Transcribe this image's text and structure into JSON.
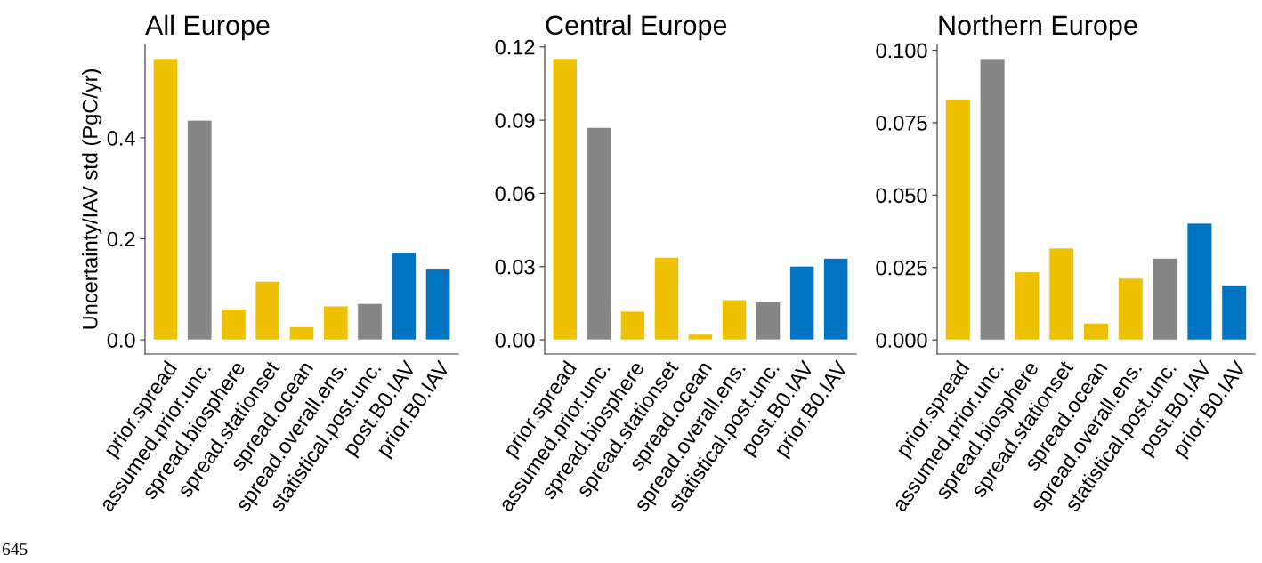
{
  "chart_data": [
    {
      "type": "bar",
      "title": "All Europe",
      "ylabel": "Uncertainty/IAV std (PgC/yr)",
      "categories": [
        "prior.spread",
        "assumed.prior.unc.",
        "spread.biosphere",
        "spread.stationset",
        "spread.ocean",
        "spread.overall.ens.",
        "statistical.post.unc.",
        "post.B0.IAV",
        "prior.B0.IAV"
      ],
      "values": [
        0.557,
        0.435,
        0.061,
        0.116,
        0.026,
        0.067,
        0.072,
        0.173,
        0.14
      ],
      "colors": [
        "#efc000",
        "#868686",
        "#efc000",
        "#efc000",
        "#efc000",
        "#efc000",
        "#868686",
        "#0073c2",
        "#0073c2"
      ],
      "ylim": [
        -0.028,
        0.585
      ],
      "yticks": [
        {
          "value": 0,
          "label": "0.0"
        },
        0.2,
        0.4
      ],
      "grid": false,
      "legend": false,
      "annotations": [
        "645"
      ]
    },
    {
      "type": "bar",
      "title": "Central Europe",
      "categories": [
        "prior.spread",
        "assumed.prior.unc.",
        "spread.biosphere",
        "spread.stationset",
        "spread.ocean",
        "spread.overall.ens.",
        "statistical.post.unc.",
        "post.B0.IAV",
        "prior.B0.IAV"
      ],
      "values": [
        0.1152,
        0.087,
        0.0117,
        0.0338,
        0.0023,
        0.0164,
        0.0155,
        0.0302,
        0.0334
      ],
      "colors": [
        "#efc000",
        "#868686",
        "#efc000",
        "#efc000",
        "#efc000",
        "#efc000",
        "#868686",
        "#0073c2",
        "#0073c2"
      ],
      "ylim": [
        -0.0058,
        0.121
      ],
      "yticks": [
        {
          "value": 0,
          "label": "0.00"
        },
        0.03,
        0.06,
        0.09,
        {
          "value": 0.12,
          "label": "0.12"
        }
      ],
      "grid": false,
      "legend": false
    },
    {
      "type": "bar",
      "title": "Northern Europe",
      "categories": [
        "prior.spread",
        "assumed.prior.unc.",
        "spread.biosphere",
        "spread.stationset",
        "spread.ocean",
        "spread.overall.ens.",
        "statistical.post.unc.",
        "post.B0.IAV",
        "prior.B0.IAV"
      ],
      "values": [
        0.0831,
        0.0971,
        0.0235,
        0.0317,
        0.0058,
        0.0213,
        0.0282,
        0.0403,
        0.0189
      ],
      "colors": [
        "#efc000",
        "#868686",
        "#efc000",
        "#efc000",
        "#efc000",
        "#efc000",
        "#868686",
        "#0073c2",
        "#0073c2"
      ],
      "ylim": [
        -0.00486,
        0.102
      ],
      "yticks": [
        {
          "value": 0,
          "label": "0.000"
        },
        0.025,
        {
          "value": 0.05,
          "label": "0.050"
        },
        0.075,
        {
          "value": 0.1,
          "label": "0.100"
        }
      ],
      "grid": false,
      "legend": false
    }
  ]
}
